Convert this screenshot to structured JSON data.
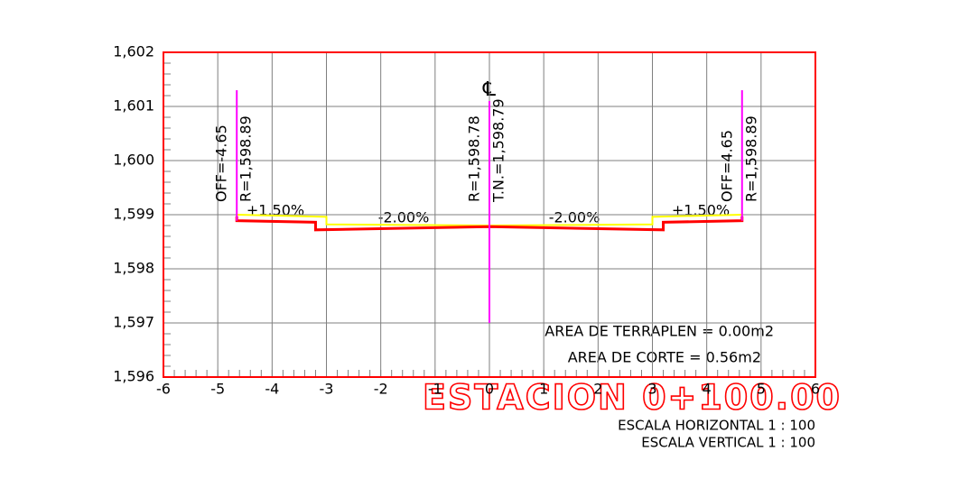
{
  "chart_data": {
    "type": "line",
    "title": "ESTACION 0+100.00",
    "xlim": [
      -6,
      6
    ],
    "xticks": [
      -6,
      -5,
      -4,
      -3,
      -2,
      -1,
      0,
      1,
      2,
      3,
      4,
      5,
      6
    ],
    "ylim": [
      1596,
      1602
    ],
    "yticks": [
      {
        "value": 1596,
        "label": "1,596"
      },
      {
        "value": 1597,
        "label": "1,597"
      },
      {
        "value": 1598,
        "label": "1,598"
      },
      {
        "value": 1599,
        "label": "1,599"
      },
      {
        "value": 1600,
        "label": "1,600"
      },
      {
        "value": 1601,
        "label": "1,601"
      },
      {
        "value": 1602,
        "label": "1,602"
      }
    ],
    "grid": true,
    "series": [
      {
        "color": "#ffff00",
        "x": [
          -4.65,
          -3.0,
          -3.0,
          0,
          3.0,
          3.0,
          4.65
        ],
        "values": [
          1599.0,
          1598.96,
          1598.82,
          1598.8,
          1598.82,
          1598.96,
          1599.0
        ]
      },
      {
        "color": "#ff0000",
        "x": [
          -4.65,
          -4.65,
          -3.2,
          -3.2,
          0,
          3.2,
          3.2,
          4.65,
          4.65
        ],
        "values": [
          1598.97,
          1598.89,
          1598.86,
          1598.72,
          1598.78,
          1598.72,
          1598.86,
          1598.89,
          1598.97
        ]
      }
    ],
    "verticals": [
      {
        "color": "#ff00ff",
        "x": -4.65,
        "ylim": [
          1598.89,
          1601.3
        ],
        "labels": [
          "OFF=-4.65",
          "R=1,598.89"
        ]
      },
      {
        "color": "#ff00ff",
        "x": 0,
        "ylim": [
          1597.0,
          1601.1
        ],
        "labels": [
          "R=1,598.78",
          "T.N.=1,598.79"
        ]
      },
      {
        "color": "#ff00ff",
        "x": 4.65,
        "ylim": [
          1598.89,
          1601.3
        ],
        "labels": [
          "OFF=4.65",
          "R=1,598.89"
        ]
      }
    ],
    "centerline_symbol": "℄",
    "slope_labels": [
      "+1.50%",
      "-2.00%",
      "-2.00%",
      "+1.50%"
    ],
    "area_labels": [
      "AREA DE TERRAPLEN = 0.00m2",
      "AREA DE CORTE = 0.56m2"
    ],
    "scale_labels": [
      "ESCALA HORIZONTAL 1 : 100",
      "ESCALA VERTICAL 1 : 100"
    ]
  }
}
